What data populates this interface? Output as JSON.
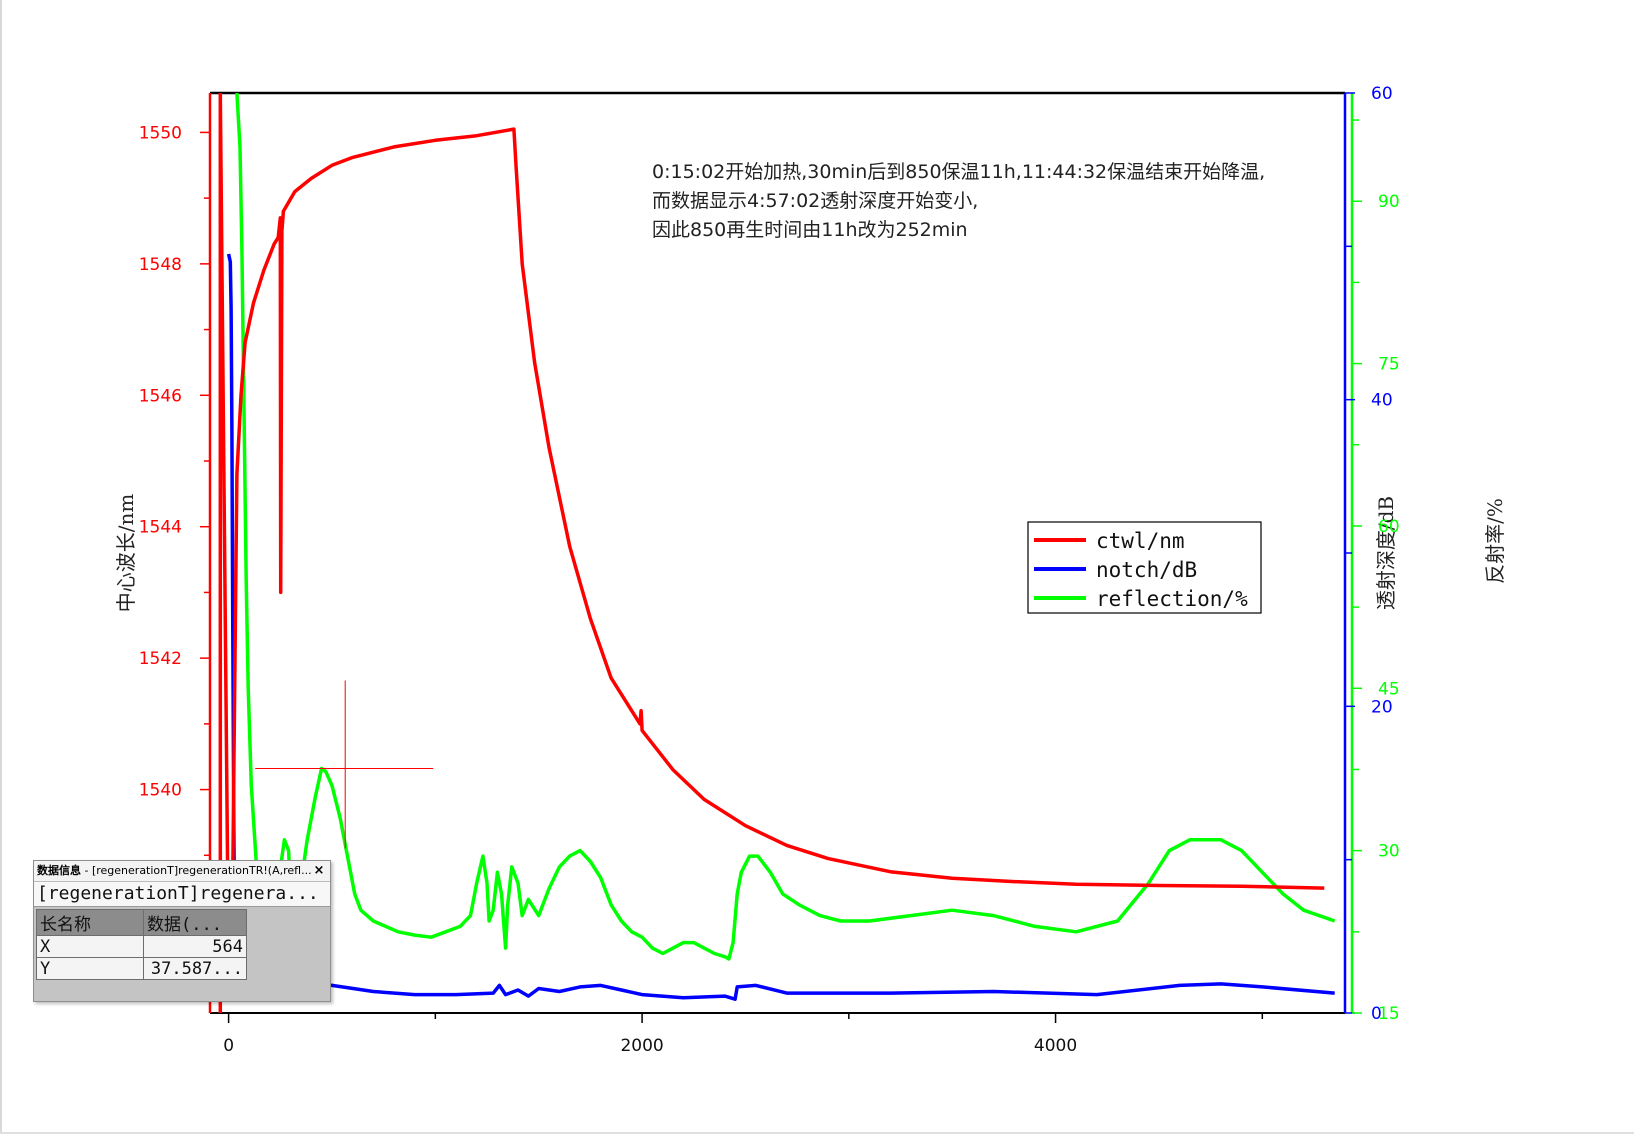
{
  "annotation_lines": [
    "0:15:02开始加热,30min后到850保温11h,11:44:32保温结束开始降温,",
    "而数据显示4:57:02透射深度开始变小,",
    "因此850再生时间由11h改为252min"
  ],
  "data_info": {
    "title_strong": "数据信息",
    "title_rest": " - [regenerationT]regenerationTR!(A,refl...",
    "close_glyph": "×",
    "close_icon": "close-icon",
    "name_row": "[regenerationT]regenera...",
    "headers": [
      "长名称",
      "数据(..."
    ],
    "rows": [
      {
        "label": "X",
        "value": "564"
      },
      {
        "label": "Y",
        "value": "37.587..."
      }
    ]
  },
  "colors": {
    "ctwl": "#ff0000",
    "notch": "#0000ff",
    "reflection": "#00ff00",
    "crosshair": "#ff0000",
    "axis": "#000000"
  },
  "chart_data": {
    "type": "line",
    "title": "",
    "xlabel": "",
    "xlim": [
      -90,
      5400
    ],
    "x_ticks": [
      0,
      2000,
      4000
    ],
    "legend_position": "right",
    "grid": false,
    "axes": {
      "left": {
        "label": "中心波长/nm",
        "range": [
          1536.6,
          1550.6
        ],
        "ticks": [
          1540,
          1542,
          1544,
          1546,
          1548,
          1550
        ],
        "color": "#ff0000"
      },
      "right1": {
        "label": "透射深度/dB",
        "range": [
          0,
          60
        ],
        "ticks": [
          0,
          20,
          40,
          60
        ],
        "color": "#0000ff"
      },
      "right2": {
        "label": "反射率/%",
        "range": [
          15,
          100
        ],
        "ticks": [
          15,
          30,
          45,
          60,
          75,
          90
        ],
        "color": "#00ff00"
      }
    },
    "crosshair": {
      "x": 564,
      "y": 37.587
    },
    "series": [
      {
        "name": "ctwl/nm",
        "axis": "left",
        "color": "#ff0000",
        "points": [
          [
            -40,
            1536.6
          ],
          [
            -40,
            1550.6
          ],
          [
            0,
            1537.2
          ],
          [
            20,
            1538.6
          ],
          [
            40,
            1544.8
          ],
          [
            60,
            1546.0
          ],
          [
            80,
            1546.8
          ],
          [
            120,
            1547.4
          ],
          [
            170,
            1547.9
          ],
          [
            220,
            1548.3
          ],
          [
            240,
            1548.4
          ],
          [
            250,
            1548.7
          ],
          [
            252,
            1543.0
          ],
          [
            258,
            1548.5
          ],
          [
            265,
            1548.8
          ],
          [
            320,
            1549.1
          ],
          [
            400,
            1549.3
          ],
          [
            500,
            1549.5
          ],
          [
            600,
            1549.62
          ],
          [
            800,
            1549.78
          ],
          [
            1000,
            1549.88
          ],
          [
            1200,
            1549.95
          ],
          [
            1380,
            1550.05
          ],
          [
            1390,
            1549.5
          ],
          [
            1420,
            1548.0
          ],
          [
            1480,
            1546.5
          ],
          [
            1550,
            1545.2
          ],
          [
            1650,
            1543.7
          ],
          [
            1750,
            1542.6
          ],
          [
            1850,
            1541.7
          ],
          [
            1990,
            1541.0
          ],
          [
            1995,
            1541.2
          ],
          [
            2000,
            1540.9
          ],
          [
            2050,
            1540.7
          ],
          [
            2150,
            1540.3
          ],
          [
            2300,
            1539.85
          ],
          [
            2500,
            1539.45
          ],
          [
            2700,
            1539.15
          ],
          [
            2900,
            1538.95
          ],
          [
            3200,
            1538.75
          ],
          [
            3500,
            1538.65
          ],
          [
            3800,
            1538.6
          ],
          [
            4100,
            1538.56
          ],
          [
            4500,
            1538.54
          ],
          [
            4900,
            1538.53
          ],
          [
            5300,
            1538.5
          ]
        ]
      },
      {
        "name": "notch/dB",
        "axis": "right1",
        "color": "#0000ff",
        "points": [
          [
            0,
            49.5
          ],
          [
            8,
            49.0
          ],
          [
            12,
            46.0
          ],
          [
            16,
            38.0
          ],
          [
            20,
            26.0
          ],
          [
            25,
            12.0
          ],
          [
            30,
            5.0
          ],
          [
            60,
            3.0
          ],
          [
            150,
            2.3
          ],
          [
            300,
            2.0
          ],
          [
            500,
            1.8
          ],
          [
            700,
            1.4
          ],
          [
            900,
            1.2
          ],
          [
            1100,
            1.2
          ],
          [
            1280,
            1.3
          ],
          [
            1310,
            1.8
          ],
          [
            1340,
            1.2
          ],
          [
            1400,
            1.5
          ],
          [
            1450,
            1.1
          ],
          [
            1500,
            1.6
          ],
          [
            1600,
            1.4
          ],
          [
            1700,
            1.7
          ],
          [
            1800,
            1.8
          ],
          [
            1900,
            1.5
          ],
          [
            2000,
            1.2
          ],
          [
            2200,
            1.0
          ],
          [
            2400,
            1.1
          ],
          [
            2450,
            0.9
          ],
          [
            2460,
            1.7
          ],
          [
            2550,
            1.8
          ],
          [
            2700,
            1.3
          ],
          [
            3200,
            1.3
          ],
          [
            3700,
            1.4
          ],
          [
            4200,
            1.2
          ],
          [
            4600,
            1.8
          ],
          [
            4800,
            1.9
          ],
          [
            5000,
            1.7
          ],
          [
            5350,
            1.3
          ]
        ]
      },
      {
        "name": "reflection/%",
        "axis": "right2",
        "color": "#00ff00",
        "points": [
          [
            40,
            100
          ],
          [
            55,
            95
          ],
          [
            65,
            85
          ],
          [
            75,
            70
          ],
          [
            85,
            55
          ],
          [
            95,
            45
          ],
          [
            110,
            36
          ],
          [
            130,
            30
          ],
          [
            150,
            24
          ],
          [
            170,
            21
          ],
          [
            190,
            21
          ],
          [
            220,
            22
          ],
          [
            240,
            27
          ],
          [
            270,
            31
          ],
          [
            290,
            30
          ],
          [
            300,
            26
          ],
          [
            310,
            22
          ],
          [
            330,
            22
          ],
          [
            350,
            27
          ],
          [
            380,
            31
          ],
          [
            420,
            35
          ],
          [
            450,
            37.6
          ],
          [
            470,
            37.3
          ],
          [
            500,
            36
          ],
          [
            540,
            33
          ],
          [
            580,
            29
          ],
          [
            610,
            26
          ],
          [
            640,
            24.5
          ],
          [
            700,
            23.5
          ],
          [
            760,
            23
          ],
          [
            820,
            22.5
          ],
          [
            900,
            22.2
          ],
          [
            980,
            22
          ],
          [
            1050,
            22.5
          ],
          [
            1120,
            23
          ],
          [
            1170,
            24
          ],
          [
            1200,
            27
          ],
          [
            1230,
            29.5
          ],
          [
            1250,
            27
          ],
          [
            1260,
            23.5
          ],
          [
            1280,
            24.5
          ],
          [
            1300,
            28
          ],
          [
            1320,
            26
          ],
          [
            1340,
            21
          ],
          [
            1350,
            25
          ],
          [
            1370,
            28.5
          ],
          [
            1400,
            27
          ],
          [
            1420,
            24
          ],
          [
            1450,
            25.5
          ],
          [
            1500,
            24
          ],
          [
            1550,
            26.5
          ],
          [
            1600,
            28.5
          ],
          [
            1650,
            29.5
          ],
          [
            1700,
            30
          ],
          [
            1750,
            29
          ],
          [
            1800,
            27.5
          ],
          [
            1850,
            25
          ],
          [
            1900,
            23.5
          ],
          [
            1950,
            22.5
          ],
          [
            2000,
            22
          ],
          [
            2050,
            21
          ],
          [
            2100,
            20.5
          ],
          [
            2150,
            21
          ],
          [
            2200,
            21.5
          ],
          [
            2250,
            21.5
          ],
          [
            2300,
            21
          ],
          [
            2350,
            20.5
          ],
          [
            2400,
            20.2
          ],
          [
            2420,
            20
          ],
          [
            2440,
            21.5
          ],
          [
            2460,
            26
          ],
          [
            2480,
            28
          ],
          [
            2520,
            29.5
          ],
          [
            2560,
            29.5
          ],
          [
            2620,
            28
          ],
          [
            2680,
            26
          ],
          [
            2760,
            25
          ],
          [
            2860,
            24
          ],
          [
            2960,
            23.5
          ],
          [
            3100,
            23.5
          ],
          [
            3300,
            24
          ],
          [
            3500,
            24.5
          ],
          [
            3700,
            24
          ],
          [
            3900,
            23
          ],
          [
            4100,
            22.5
          ],
          [
            4300,
            23.5
          ],
          [
            4450,
            27
          ],
          [
            4550,
            30
          ],
          [
            4650,
            31
          ],
          [
            4800,
            31
          ],
          [
            4900,
            30
          ],
          [
            5000,
            28
          ],
          [
            5100,
            26
          ],
          [
            5200,
            24.5
          ],
          [
            5350,
            23.5
          ]
        ]
      }
    ]
  }
}
